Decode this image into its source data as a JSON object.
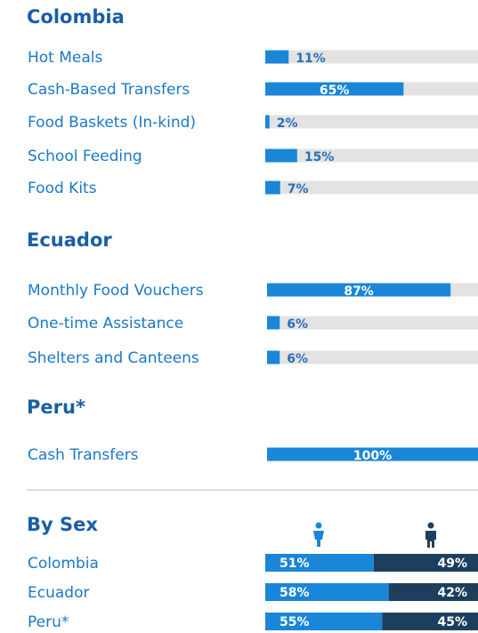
{
  "chart_data": [
    {
      "type": "bar",
      "title": "Colombia",
      "categories": [
        "Hot Meals",
        "Cash-Based Transfers",
        "Food Baskets (In-kind)",
        "School Feeding",
        "Food Kits"
      ],
      "values": [
        11,
        65,
        2,
        15,
        7
      ],
      "value_labels": [
        "11%",
        "65%",
        "2%",
        "15%",
        "7%"
      ],
      "xlim": [
        0,
        100
      ],
      "color": "#1a86d8"
    },
    {
      "type": "bar",
      "title": "Ecuador",
      "categories": [
        "Monthly Food Vouchers",
        "One-time Assistance",
        "Shelters and Canteens"
      ],
      "values": [
        87,
        6,
        6
      ],
      "value_labels": [
        "87%",
        "6%",
        "6%"
      ],
      "xlim": [
        0,
        100
      ],
      "color": "#1a86d8"
    },
    {
      "type": "bar",
      "title": "Peru*",
      "categories": [
        "Cash Transfers"
      ],
      "values": [
        100
      ],
      "value_labels": [
        "100%"
      ],
      "xlim": [
        0,
        100
      ],
      "color": "#1a86d8"
    },
    {
      "type": "bar",
      "stacked": true,
      "title": "By Sex",
      "categories": [
        "Colombia",
        "Ecuador",
        "Peru*"
      ],
      "series": [
        {
          "color": "#1a86d8",
          "values": [
            51,
            58,
            55
          ],
          "value_labels": [
            "51%",
            "58%",
            "55%"
          ]
        },
        {
          "color": "#1d3f5e",
          "values": [
            49,
            42,
            45
          ],
          "value_labels": [
            "49%",
            "42%",
            "45%"
          ]
        }
      ],
      "xlim": [
        0,
        100
      ]
    }
  ]
}
